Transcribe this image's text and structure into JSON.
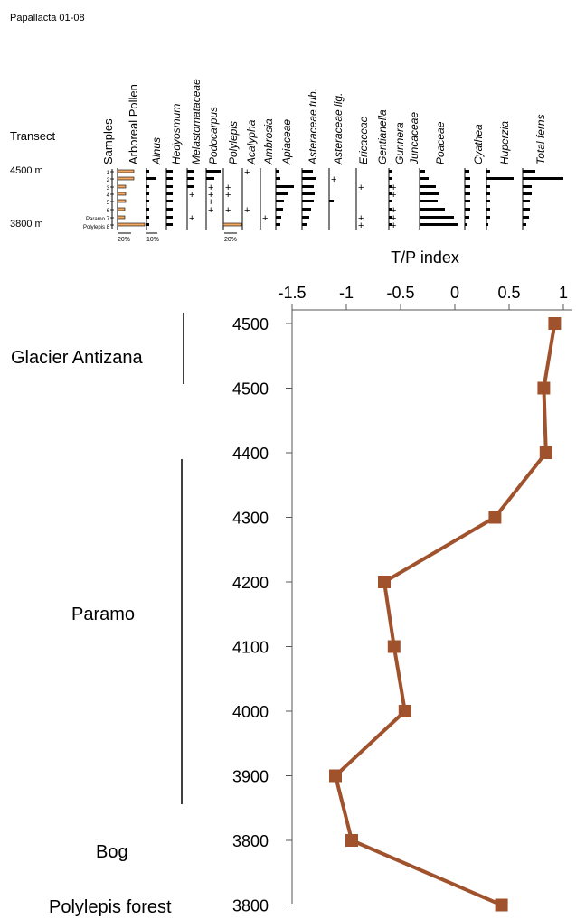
{
  "header": {
    "site_title": "Papallacta 01-08",
    "transect_label": "Transect",
    "altitude_top": "4500 m",
    "altitude_bottom": "3800 m"
  },
  "pollen_diagram": {
    "taxa": [
      {
        "name": "Samples",
        "italic": false,
        "color": "#000000"
      },
      {
        "name": "Arboreal Pollen",
        "italic": false,
        "color": "#e0642a"
      },
      {
        "name": "Alnus",
        "italic": true,
        "color": "#000000"
      },
      {
        "name": "Hedyosmum",
        "italic": true,
        "color": "#000000"
      },
      {
        "name": "Melastomataceae",
        "italic": true,
        "color": "#000000"
      },
      {
        "name": "Podocarpus",
        "italic": true,
        "color": "#000000"
      },
      {
        "name": "Polylepis",
        "italic": true,
        "color": "#000000"
      },
      {
        "name": "Acalypha",
        "italic": true,
        "color": "#000000"
      },
      {
        "name": "Ambrosia",
        "italic": true,
        "color": "#000000"
      },
      {
        "name": "Apiaceae",
        "italic": true,
        "color": "#000000"
      },
      {
        "name": "Asteraceae tub.",
        "italic": true,
        "color": "#000000"
      },
      {
        "name": "Asteraceae lig.",
        "italic": true,
        "color": "#000000"
      },
      {
        "name": "Ericaceae",
        "italic": true,
        "color": "#000000"
      },
      {
        "name": "Gentianella",
        "italic": true,
        "color": "#000000"
      },
      {
        "name": "Gunnera",
        "italic": true,
        "color": "#000000"
      },
      {
        "name": "Juncaceae",
        "italic": true,
        "color": "#000000"
      },
      {
        "name": "Poaceae",
        "italic": true,
        "color": "#000000"
      },
      {
        "name": "Cyathea",
        "italic": true,
        "color": "#000000"
      },
      {
        "name": "Huperzia",
        "italic": true,
        "color": "#000000"
      },
      {
        "name": "Total ferns",
        "italic": true,
        "color": "#000000"
      }
    ],
    "sample_labels": [
      "1",
      "2",
      "3",
      "4",
      "5",
      "6",
      "Paramo 7",
      "Polylepis 8"
    ],
    "scale_labels": [
      "20%",
      "10%",
      "20%"
    ]
  },
  "chart_data": {
    "type": "line",
    "title": "T/P index",
    "xlabel": "",
    "ylabel": "",
    "xlim": [
      -1.5,
      1
    ],
    "x_ticks": [
      -1.5,
      -1,
      -0.5,
      0,
      0.5,
      1
    ],
    "x_tick_labels": [
      "-1.5",
      "-1",
      "-0.5",
      "0",
      "0.5",
      "1"
    ],
    "y_tick_labels": [
      "4500",
      "4500",
      "4400",
      "4300",
      "4200",
      "4100",
      "4000",
      "3900",
      "3800",
      "3800"
    ],
    "series": [
      {
        "color": "#a0522d",
        "marker": "square",
        "x": [
          0.92,
          0.82,
          0.84,
          0.37,
          -0.65,
          -0.56,
          -0.46,
          -1.1,
          -0.95,
          0.43
        ],
        "y": [
          "4500",
          "4500",
          "4400",
          "4300",
          "4200",
          "4100",
          "4000",
          "3900",
          "3800",
          "3800"
        ]
      }
    ],
    "zones": [
      {
        "label": "Glacier Antizana",
        "from_tick": 0,
        "to_tick": 1
      },
      {
        "label": "Paramo",
        "from_tick": 2,
        "to_tick": 7
      },
      {
        "label": "Bog",
        "at_tick": 8
      },
      {
        "label": "Polylepis forest",
        "at_tick": 9
      }
    ]
  }
}
